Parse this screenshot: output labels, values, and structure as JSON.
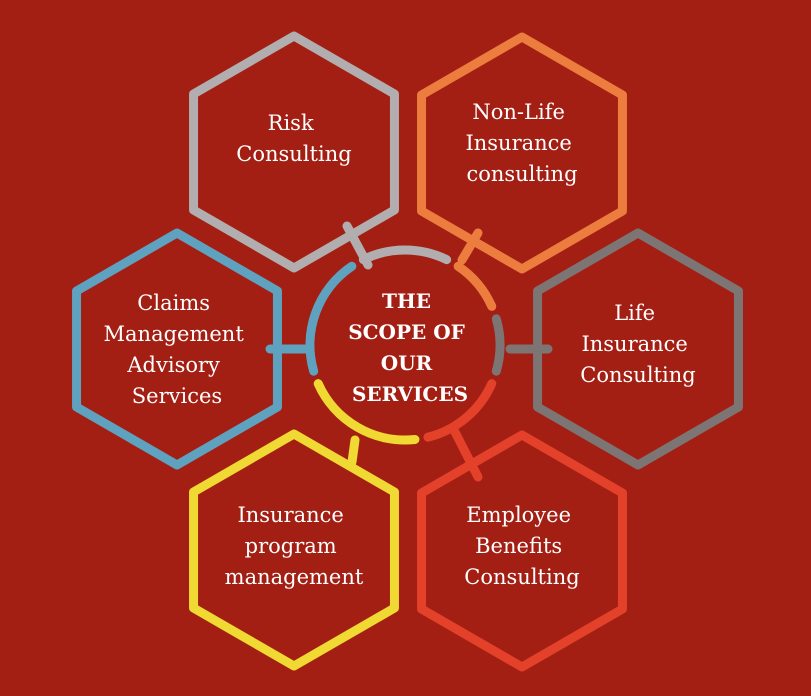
{
  "background": "#a31f14",
  "center": {
    "lines": [
      "THE",
      "SCOPE OF",
      "OUR",
      "SERVICES"
    ]
  },
  "services": [
    {
      "id": "risk",
      "lines": [
        "Risk",
        "Consulting"
      ],
      "color": "#b2adae"
    },
    {
      "id": "non-life",
      "lines": [
        "Non-Life",
        "Insurance",
        "consulting"
      ],
      "color": "#ec7d3f"
    },
    {
      "id": "life",
      "lines": [
        "Life",
        "Insurance",
        "Consulting"
      ],
      "color": "#7d7474"
    },
    {
      "id": "employee-benefits",
      "lines": [
        "Employee",
        "Benefits",
        "Consulting"
      ],
      "color": "#e4412a"
    },
    {
      "id": "insurance-program",
      "lines": [
        "Insurance",
        "program",
        "management"
      ],
      "color": "#f0d932"
    },
    {
      "id": "claims",
      "lines": [
        "Claims",
        "Management",
        "Advisory",
        "Services"
      ],
      "color": "#5fa2bf"
    }
  ]
}
